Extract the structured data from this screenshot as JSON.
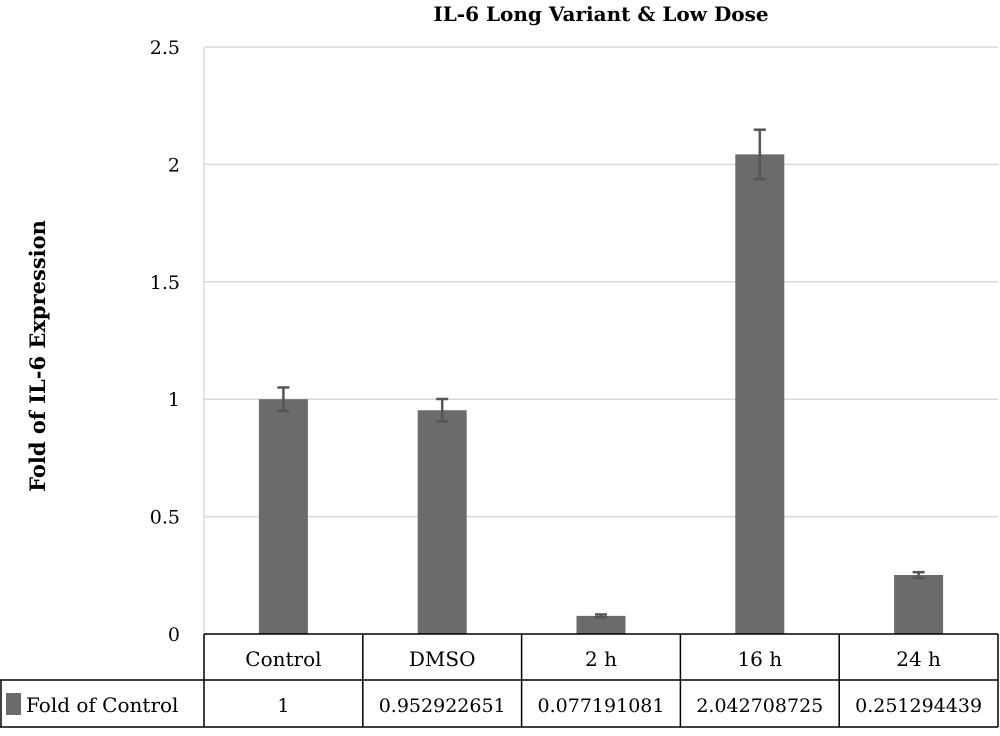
{
  "chart_data": {
    "type": "bar",
    "title": "IL-6 Long Variant & Low Dose",
    "xlabel": "",
    "ylabel": "Fold of IL-6 Expression",
    "categories": [
      "Control",
      "DMSO",
      "2 h",
      "16 h",
      "24 h"
    ],
    "series": [
      {
        "name": "Fold of Control",
        "values": [
          1,
          0.952922651,
          0.077191081,
          2.042708725,
          0.251294439
        ],
        "value_labels": [
          "1",
          "0.952922651",
          "0.077191081",
          "2.042708725",
          "0.251294439"
        ],
        "errors": [
          0.05,
          0.048,
          0.006,
          0.105,
          0.012
        ],
        "color": "#6b6b6b"
      }
    ],
    "ylim": [
      0,
      2.5
    ],
    "yticks": [
      0,
      0.5,
      1,
      1.5,
      2,
      2.5
    ],
    "ytick_labels": [
      "0",
      "0.5",
      "1",
      "1.5",
      "2",
      "2.5"
    ],
    "grid": true,
    "data_table": true,
    "legend": "in data table"
  }
}
